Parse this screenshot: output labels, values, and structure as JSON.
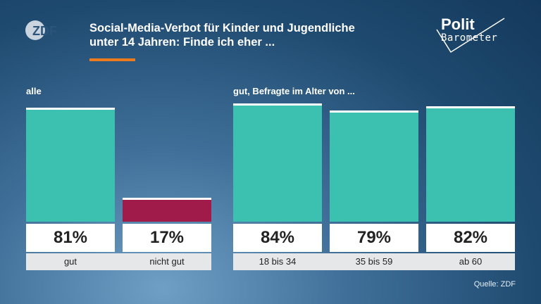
{
  "header": {
    "logo_text": "ZDF",
    "title_line1": "Social-Media-Verbot für Kinder und Jugendliche",
    "title_line2": "unter 14 Jahren: Finde ich eher ...",
    "brand_line1": "Polit",
    "brand_line2": "Barometer",
    "accent_color": "#ee7a1e"
  },
  "groups": {
    "all_label": "alle",
    "age_label": "gut, Befragte im Alter von ..."
  },
  "source": "Quelle: ZDF",
  "chart_data": {
    "type": "bar",
    "categories": [
      "gut",
      "nicht gut",
      "18 bis 34",
      "35 bis 59",
      "ab 60"
    ],
    "values": [
      81,
      17,
      84,
      79,
      82
    ],
    "value_labels": [
      "81%",
      "17%",
      "84%",
      "79%",
      "82%"
    ],
    "colors": [
      "#3cc1b1",
      "#a01a4a",
      "#3cc1b1",
      "#3cc1b1",
      "#3cc1b1"
    ],
    "title": "Social-Media-Verbot für Kinder und Jugendliche unter 14 Jahren: Finde ich eher ...",
    "ylim": [
      0,
      100
    ],
    "grid": false,
    "legend": "none"
  }
}
